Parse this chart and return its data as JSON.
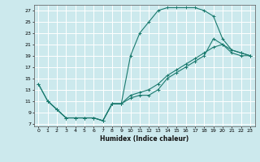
{
  "title": "",
  "xlabel": "Humidex (Indice chaleur)",
  "ylabel": "",
  "background_color": "#cce9ed",
  "grid_color": "#ffffff",
  "line_color": "#1a7a6e",
  "xlim": [
    -0.5,
    23.5
  ],
  "ylim": [
    6.5,
    28
  ],
  "xticks": [
    0,
    1,
    2,
    3,
    4,
    5,
    6,
    7,
    8,
    9,
    10,
    11,
    12,
    13,
    14,
    15,
    16,
    17,
    18,
    19,
    20,
    21,
    22,
    23
  ],
  "yticks": [
    7,
    9,
    11,
    13,
    15,
    17,
    19,
    21,
    23,
    25,
    27
  ],
  "series": [
    {
      "x": [
        0,
        1,
        2,
        3,
        4,
        5,
        6,
        7,
        8,
        9,
        10,
        11,
        12,
        13,
        14,
        15,
        16,
        17,
        18,
        19,
        20,
        21,
        22,
        23
      ],
      "y": [
        14,
        11,
        9.5,
        8,
        8,
        8,
        8,
        7.5,
        10.5,
        10.5,
        19,
        23,
        25,
        27,
        27.5,
        27.5,
        27.5,
        27.5,
        27,
        26,
        22,
        20,
        19.5,
        19
      ]
    },
    {
      "x": [
        0,
        1,
        2,
        3,
        4,
        5,
        6,
        7,
        8,
        9,
        10,
        11,
        12,
        13,
        14,
        15,
        16,
        17,
        18,
        19,
        20,
        21,
        22,
        23
      ],
      "y": [
        14,
        11,
        9.5,
        8,
        8,
        8,
        8,
        7.5,
        10.5,
        10.5,
        11.5,
        12,
        12,
        13,
        15,
        16,
        17,
        18,
        19,
        22,
        21,
        20,
        19.5,
        19
      ]
    },
    {
      "x": [
        1,
        2,
        3,
        4,
        5,
        6,
        7,
        8,
        9,
        10,
        11,
        12,
        13,
        14,
        15,
        16,
        17,
        18,
        19,
        20,
        21,
        22,
        23
      ],
      "y": [
        11,
        9.5,
        8,
        8,
        8,
        8,
        7.5,
        10.5,
        10.5,
        12,
        12.5,
        13,
        14,
        15.5,
        16.5,
        17.5,
        18.5,
        19.5,
        20.5,
        21,
        19.5,
        19,
        19
      ]
    }
  ]
}
